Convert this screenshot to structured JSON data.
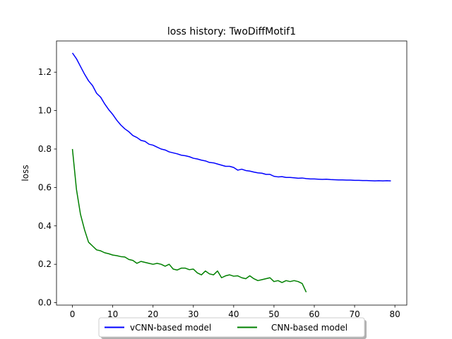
{
  "chart_data": {
    "type": "line",
    "title": "loss history:  TwoDiffMotif1",
    "xlabel": "",
    "ylabel": "loss",
    "xlim": [
      -3.95,
      82.95
    ],
    "ylim": [
      -0.0125,
      1.3625
    ],
    "xticks": [
      0,
      10,
      20,
      30,
      40,
      50,
      60,
      70,
      80
    ],
    "yticks": [
      0.0,
      0.2,
      0.4,
      0.6,
      0.8,
      1.0,
      1.2
    ],
    "ytick_labels": [
      "0.0",
      "0.2",
      "0.4",
      "0.6",
      "0.8",
      "1.0",
      "1.2"
    ],
    "grid": false,
    "legend_position": "bottom-center",
    "series": [
      {
        "name": "vCNN-based model",
        "color": "#0000ff",
        "x": [
          0,
          1,
          2,
          3,
          4,
          5,
          6,
          7,
          8,
          9,
          10,
          11,
          12,
          13,
          14,
          15,
          16,
          17,
          18,
          19,
          20,
          21,
          22,
          23,
          24,
          25,
          26,
          27,
          28,
          29,
          30,
          31,
          32,
          33,
          34,
          35,
          36,
          37,
          38,
          39,
          40,
          41,
          42,
          43,
          44,
          45,
          46,
          47,
          48,
          49,
          50,
          51,
          52,
          53,
          54,
          55,
          56,
          57,
          58,
          59,
          60,
          61,
          62,
          63,
          64,
          65,
          66,
          67,
          68,
          69,
          70,
          71,
          72,
          73,
          74,
          75,
          76,
          77,
          78,
          79
        ],
        "y": [
          1.3,
          1.27,
          1.23,
          1.19,
          1.155,
          1.13,
          1.09,
          1.07,
          1.035,
          1.005,
          0.98,
          0.95,
          0.925,
          0.905,
          0.89,
          0.87,
          0.86,
          0.845,
          0.84,
          0.825,
          0.82,
          0.81,
          0.8,
          0.795,
          0.785,
          0.78,
          0.775,
          0.768,
          0.765,
          0.76,
          0.752,
          0.748,
          0.742,
          0.738,
          0.73,
          0.728,
          0.722,
          0.716,
          0.71,
          0.71,
          0.704,
          0.69,
          0.695,
          0.688,
          0.685,
          0.68,
          0.676,
          0.674,
          0.668,
          0.668,
          0.658,
          0.655,
          0.656,
          0.652,
          0.652,
          0.65,
          0.648,
          0.649,
          0.646,
          0.644,
          0.644,
          0.643,
          0.642,
          0.643,
          0.641,
          0.64,
          0.639,
          0.639,
          0.638,
          0.638,
          0.637,
          0.637,
          0.636,
          0.636,
          0.635,
          0.634,
          0.635,
          0.634,
          0.635,
          0.634
        ]
      },
      {
        "name": "CNN-based model",
        "color": "#008000",
        "x": [
          0,
          1,
          2,
          3,
          4,
          5,
          6,
          7,
          8,
          9,
          10,
          11,
          12,
          13,
          14,
          15,
          16,
          17,
          18,
          19,
          20,
          21,
          22,
          23,
          24,
          25,
          26,
          27,
          28,
          29,
          30,
          31,
          32,
          33,
          34,
          35,
          36,
          37,
          38,
          39,
          40,
          41,
          42,
          43,
          44,
          45,
          46,
          47,
          48,
          49,
          50,
          51,
          52,
          53,
          54,
          55,
          56,
          57,
          58
        ],
        "y": [
          0.8,
          0.59,
          0.46,
          0.38,
          0.315,
          0.295,
          0.275,
          0.27,
          0.26,
          0.255,
          0.248,
          0.245,
          0.24,
          0.238,
          0.225,
          0.22,
          0.205,
          0.215,
          0.21,
          0.205,
          0.2,
          0.205,
          0.2,
          0.19,
          0.2,
          0.175,
          0.17,
          0.18,
          0.18,
          0.172,
          0.175,
          0.155,
          0.145,
          0.165,
          0.15,
          0.145,
          0.165,
          0.13,
          0.14,
          0.145,
          0.138,
          0.14,
          0.13,
          0.125,
          0.14,
          0.125,
          0.115,
          0.12,
          0.125,
          0.13,
          0.11,
          0.115,
          0.105,
          0.115,
          0.11,
          0.115,
          0.11,
          0.1,
          0.055
        ]
      }
    ]
  }
}
